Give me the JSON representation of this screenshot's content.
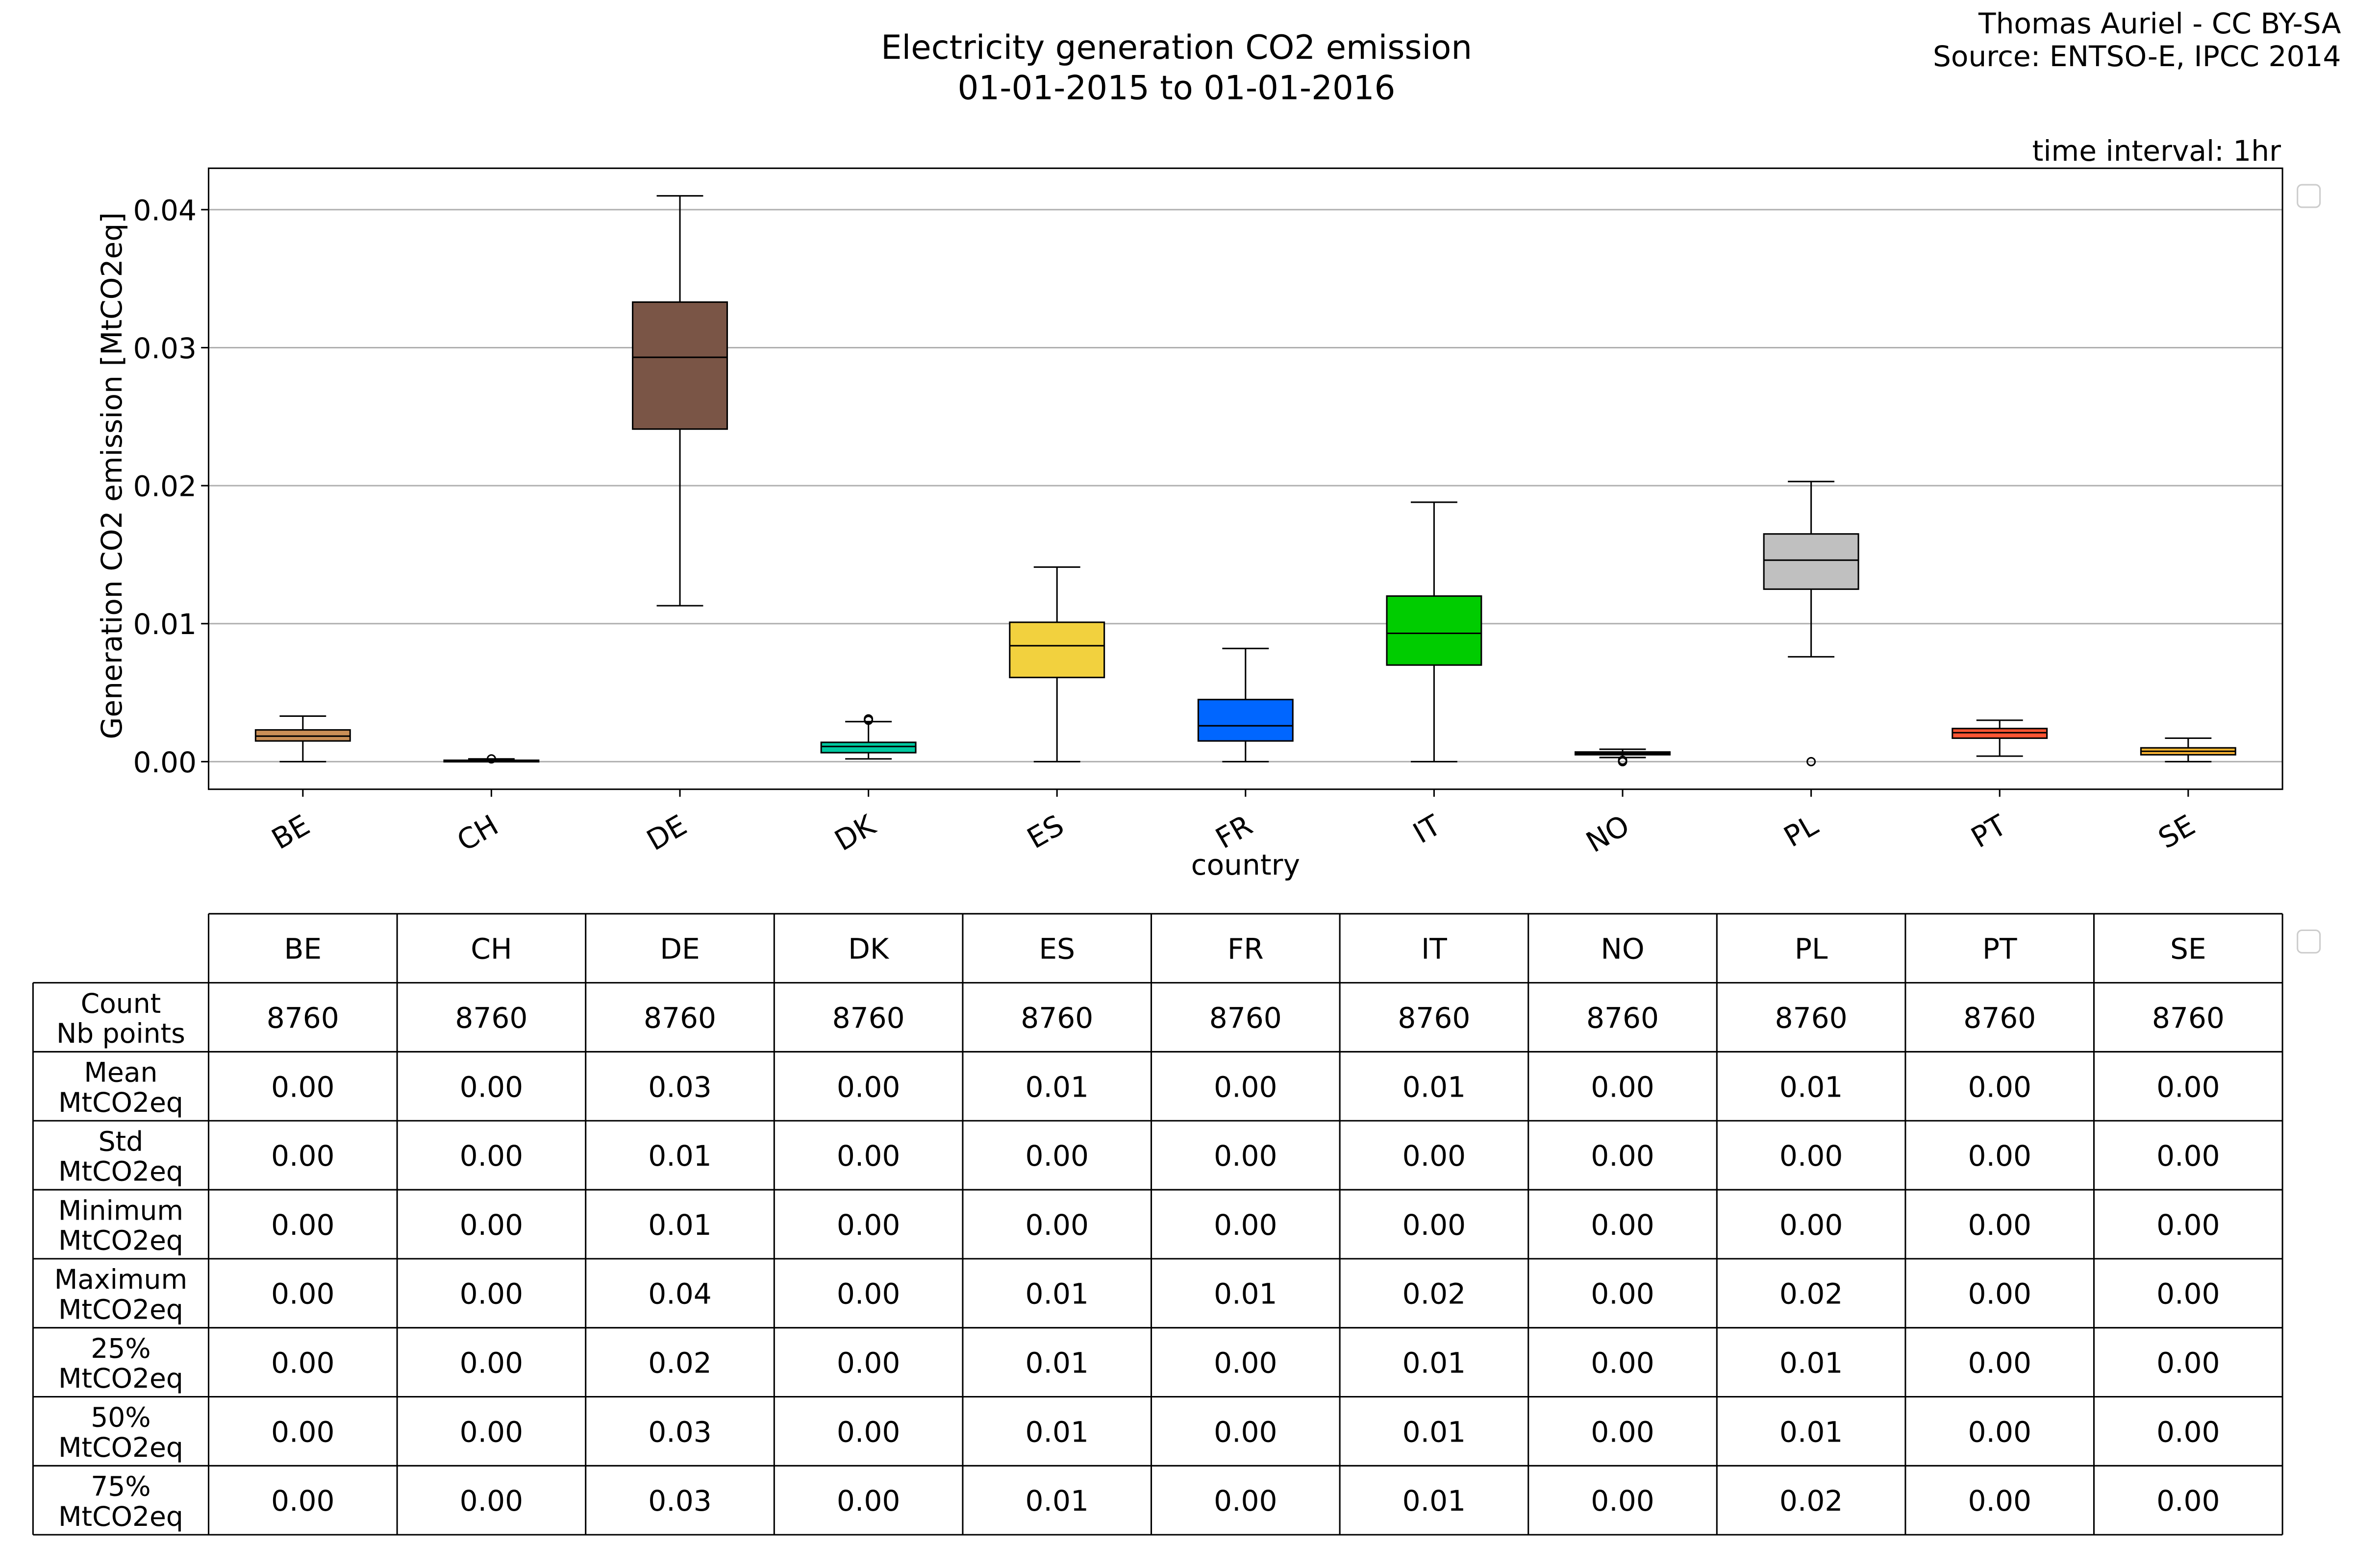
{
  "header": {
    "title_line1": "Electricity generation CO2 emission",
    "title_line2": "01-01-2015 to 01-01-2016",
    "credit_line1": "Thomas Auriel - CC BY-SA",
    "credit_line2": "Source: ENTSO-E, IPCC 2014",
    "time_interval": "time interval: 1hr"
  },
  "chart_data": {
    "type": "box",
    "title": "Electricity generation CO2 emission 01-01-2015 to 01-01-2016",
    "xlabel": "country",
    "ylabel": "Generation CO2 emission [MtCO2eq]",
    "ylim": [
      -0.002,
      0.043
    ],
    "yticks": [
      0.0,
      0.01,
      0.02,
      0.03,
      0.04
    ],
    "ytick_labels": [
      "0.00",
      "0.01",
      "0.02",
      "0.03",
      "0.04"
    ],
    "grid": "horizontal",
    "categories": [
      "BE",
      "CH",
      "DE",
      "DK",
      "ES",
      "FR",
      "IT",
      "NO",
      "PL",
      "PT",
      "SE"
    ],
    "boxes": [
      {
        "name": "BE",
        "color": "#c98f57",
        "whislo": 0.0,
        "q1": 0.0015,
        "med": 0.00185,
        "q3": 0.0023,
        "whishi": 0.0033,
        "fliers": []
      },
      {
        "name": "CH",
        "color": "#888888",
        "whislo": 0.0,
        "q1": 0.0,
        "med": 5e-05,
        "q3": 0.0001,
        "whishi": 0.0002,
        "fliers": [
          0.0002
        ]
      },
      {
        "name": "DE",
        "color": "#7a5546",
        "whislo": 0.0113,
        "q1": 0.0241,
        "med": 0.0293,
        "q3": 0.0333,
        "whishi": 0.041,
        "fliers": []
      },
      {
        "name": "DK",
        "color": "#00c9a0",
        "whislo": 0.0002,
        "q1": 0.00065,
        "med": 0.0011,
        "q3": 0.0014,
        "whishi": 0.0029,
        "fliers": [
          0.003,
          0.0031
        ]
      },
      {
        "name": "ES",
        "color": "#f2d13e",
        "whislo": 0.0,
        "q1": 0.0061,
        "med": 0.0084,
        "q3": 0.0101,
        "whishi": 0.0141,
        "fliers": []
      },
      {
        "name": "FR",
        "color": "#0066ff",
        "whislo": 0.0,
        "q1": 0.0015,
        "med": 0.0026,
        "q3": 0.0045,
        "whishi": 0.0082,
        "fliers": []
      },
      {
        "name": "IT",
        "color": "#00cc00",
        "whislo": 0.0,
        "q1": 0.007,
        "med": 0.0093,
        "q3": 0.012,
        "whishi": 0.0188,
        "fliers": []
      },
      {
        "name": "NO",
        "color": "#4a90e2",
        "whislo": 0.0003,
        "q1": 0.0005,
        "med": 0.0006,
        "q3": 0.0007,
        "whishi": 0.0009,
        "fliers": [
          0.0001,
          0.0
        ]
      },
      {
        "name": "PL",
        "color": "#c0c0c0",
        "whislo": 0.0076,
        "q1": 0.0125,
        "med": 0.0146,
        "q3": 0.0165,
        "whishi": 0.0203,
        "fliers": [
          0.0
        ]
      },
      {
        "name": "PT",
        "color": "#ff5533",
        "whislo": 0.0004,
        "q1": 0.0017,
        "med": 0.0021,
        "q3": 0.0024,
        "whishi": 0.003,
        "fliers": []
      },
      {
        "name": "SE",
        "color": "#ffb833",
        "whislo": 0.0,
        "q1": 0.0005,
        "med": 0.00075,
        "q3": 0.001,
        "whishi": 0.0017,
        "fliers": []
      }
    ]
  },
  "table": {
    "columns": [
      "BE",
      "CH",
      "DE",
      "DK",
      "ES",
      "FR",
      "IT",
      "NO",
      "PL",
      "PT",
      "SE"
    ],
    "rows": [
      {
        "label1": "Count",
        "label2": "Nb points",
        "values": [
          "8760",
          "8760",
          "8760",
          "8760",
          "8760",
          "8760",
          "8760",
          "8760",
          "8760",
          "8760",
          "8760"
        ]
      },
      {
        "label1": "Mean",
        "label2": "MtCO2eq",
        "values": [
          "0.00",
          "0.00",
          "0.03",
          "0.00",
          "0.01",
          "0.00",
          "0.01",
          "0.00",
          "0.01",
          "0.00",
          "0.00"
        ]
      },
      {
        "label1": "Std",
        "label2": "MtCO2eq",
        "values": [
          "0.00",
          "0.00",
          "0.01",
          "0.00",
          "0.00",
          "0.00",
          "0.00",
          "0.00",
          "0.00",
          "0.00",
          "0.00"
        ]
      },
      {
        "label1": "Minimum",
        "label2": "MtCO2eq",
        "values": [
          "0.00",
          "0.00",
          "0.01",
          "0.00",
          "0.00",
          "0.00",
          "0.00",
          "0.00",
          "0.00",
          "0.00",
          "0.00"
        ]
      },
      {
        "label1": "Maximum",
        "label2": "MtCO2eq",
        "values": [
          "0.00",
          "0.00",
          "0.04",
          "0.00",
          "0.01",
          "0.01",
          "0.02",
          "0.00",
          "0.02",
          "0.00",
          "0.00"
        ]
      },
      {
        "label1": "25%",
        "label2": "MtCO2eq",
        "values": [
          "0.00",
          "0.00",
          "0.02",
          "0.00",
          "0.01",
          "0.00",
          "0.01",
          "0.00",
          "0.01",
          "0.00",
          "0.00"
        ]
      },
      {
        "label1": "50%",
        "label2": "MtCO2eq",
        "values": [
          "0.00",
          "0.00",
          "0.03",
          "0.00",
          "0.01",
          "0.00",
          "0.01",
          "0.00",
          "0.01",
          "0.00",
          "0.00"
        ]
      },
      {
        "label1": "75%",
        "label2": "MtCO2eq",
        "values": [
          "0.00",
          "0.00",
          "0.03",
          "0.00",
          "0.01",
          "0.00",
          "0.01",
          "0.00",
          "0.02",
          "0.00",
          "0.00"
        ]
      }
    ]
  }
}
